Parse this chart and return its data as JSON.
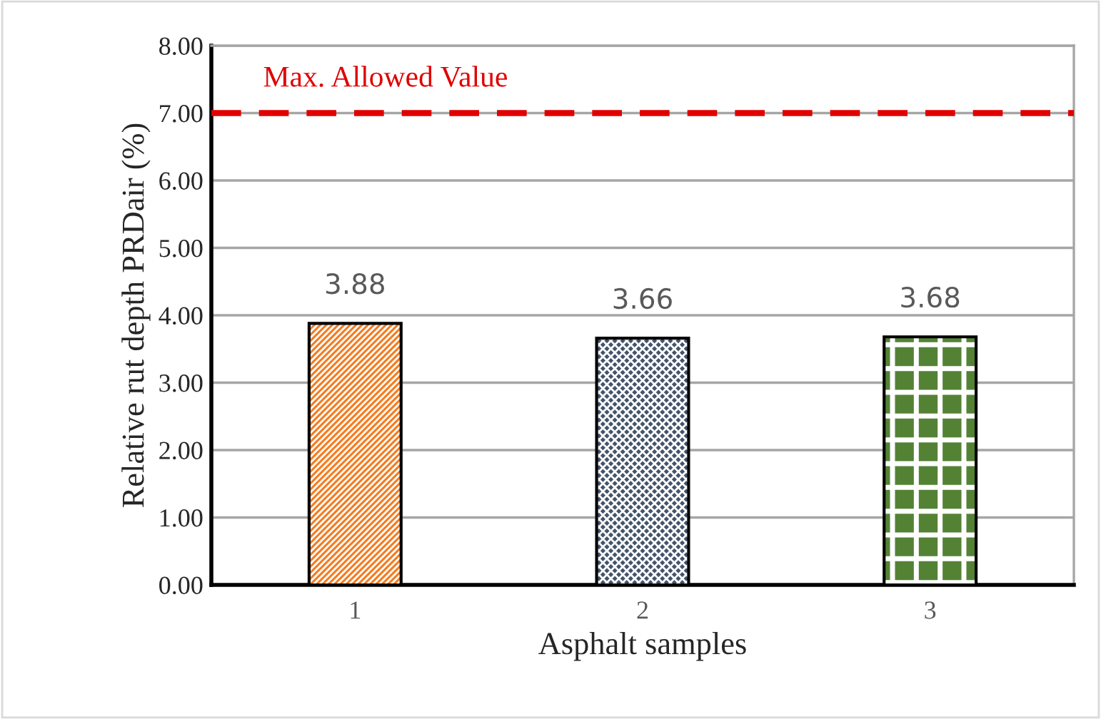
{
  "chart_data": {
    "type": "bar",
    "xlabel": "Asphalt samples",
    "ylabel": "Relative rut depth PRDair (%)",
    "categories": [
      "1",
      "2",
      "3"
    ],
    "values": [
      3.88,
      3.66,
      3.68
    ],
    "colors": [
      "#f47c20",
      "#44546a",
      "#548235"
    ],
    "ylim": [
      0,
      8
    ],
    "yticks": [
      {
        "value": 0,
        "label": "0.00"
      },
      {
        "value": 1,
        "label": "1.00"
      },
      {
        "value": 2,
        "label": "2.00"
      },
      {
        "value": 3,
        "label": "3.00"
      },
      {
        "value": 4,
        "label": "4.00"
      },
      {
        "value": 5,
        "label": "5.00"
      },
      {
        "value": 6,
        "label": "6.00"
      },
      {
        "value": 7,
        "label": "7.00"
      },
      {
        "value": 8,
        "label": "8.00"
      }
    ],
    "data_labels": true,
    "grid": "y",
    "ref_lines": [
      {
        "axis": "y",
        "value": 7,
        "label": "Max. Allowed Value",
        "color": "#e00000",
        "line_style": "dashed"
      }
    ]
  }
}
